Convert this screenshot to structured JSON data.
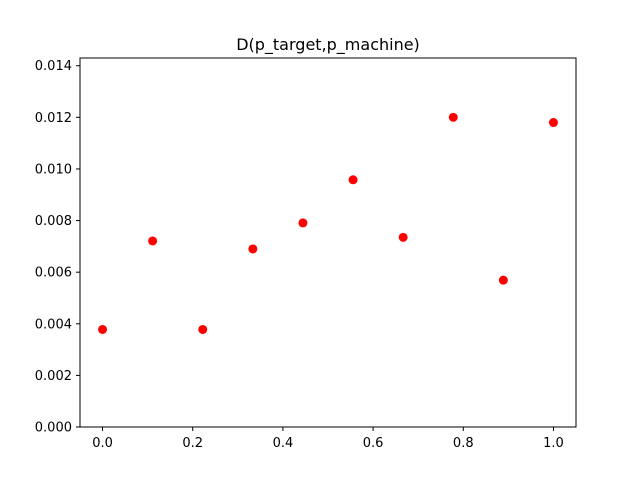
{
  "chart_data": {
    "type": "scatter",
    "title": "D(p_target,p_machine)",
    "xlabel": "",
    "ylabel": "",
    "x": [
      0.0,
      0.1111,
      0.2222,
      0.3333,
      0.4444,
      0.5556,
      0.6667,
      0.7778,
      0.8889,
      1.0
    ],
    "y": [
      0.00378,
      0.00721,
      0.00378,
      0.0069,
      0.00791,
      0.00958,
      0.00735,
      0.012,
      0.00569,
      0.0118
    ],
    "xlim": [
      -0.05,
      1.05
    ],
    "ylim": [
      0.0,
      0.0143
    ],
    "xticks": [
      0.0,
      0.2,
      0.4,
      0.6,
      0.8,
      1.0
    ],
    "xtick_labels": [
      "0.0",
      "0.2",
      "0.4",
      "0.6",
      "0.8",
      "1.0"
    ],
    "yticks": [
      0.0,
      0.002,
      0.004,
      0.006,
      0.008,
      0.01,
      0.012,
      0.014
    ],
    "ytick_labels": [
      "0.000",
      "0.002",
      "0.004",
      "0.006",
      "0.008",
      "0.010",
      "0.012",
      "0.014"
    ],
    "grid": false,
    "legend": "none",
    "marker_color": "#ff0000"
  }
}
